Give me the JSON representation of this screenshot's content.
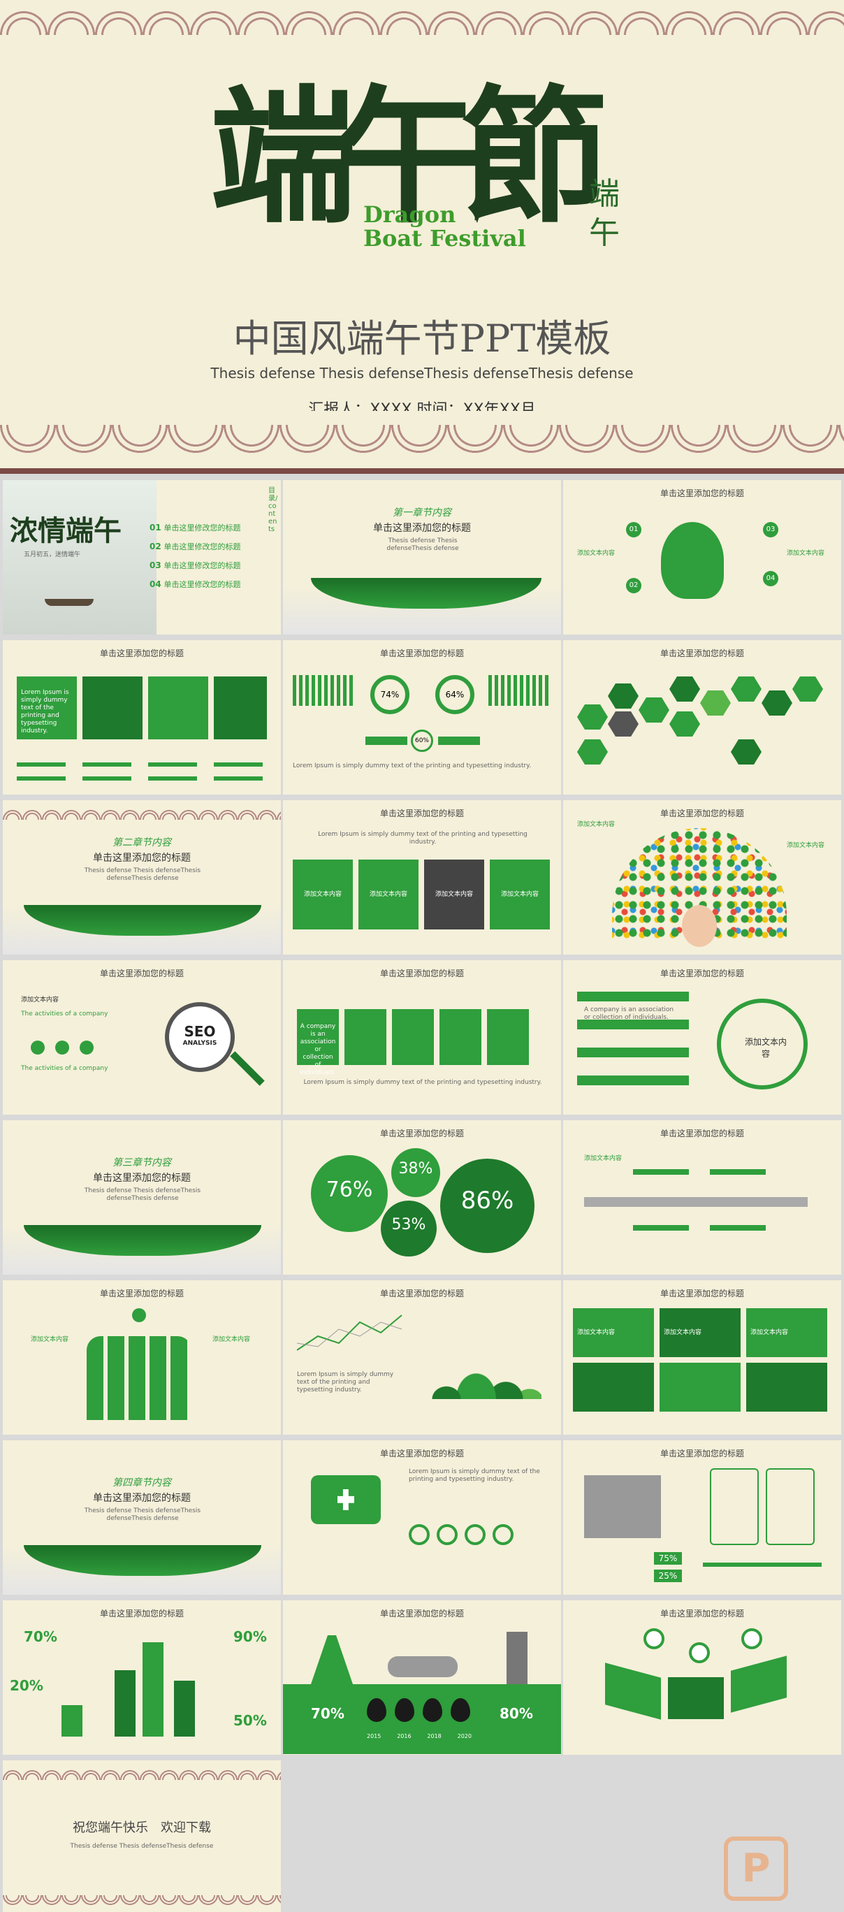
{
  "hero": {
    "brush_title": "端午節",
    "eng_line1": "Dragon",
    "eng_line2": "Boat Festival",
    "seal": "端午",
    "title": "中国风端午节PPT模板",
    "subtitle": "Thesis defense Thesis defenseThesis defenseThesis defense",
    "meta": "汇报人：XXXX   时间：XX年XX月"
  },
  "colors": {
    "green": "#2f9e3c",
    "dark_green": "#1e7a2c",
    "light_green": "#58b548",
    "beige": "#f5f0da",
    "wave": "#b58b86"
  },
  "slide_title": "单击这里添加您的标题",
  "toc": {
    "brush": "浓情端午",
    "tagline": "五月初五，迷情端午",
    "side": "目录/contents",
    "items": [
      {
        "num": "01",
        "label": "单击这里修改您的标题"
      },
      {
        "num": "02",
        "label": "单击这里修改您的标题"
      },
      {
        "num": "03",
        "label": "单击这里修改您的标题"
      },
      {
        "num": "04",
        "label": "单击这里修改您的标题"
      }
    ]
  },
  "chapters": [
    {
      "title": "第一章节内容",
      "sub": "单击这里添加您的标题",
      "desc": "Thesis defense Thesis defenseThesis defense"
    },
    {
      "title": "第二章节内容",
      "sub": "单击这里添加您的标题",
      "desc": "Thesis defense Thesis defenseThesis defenseThesis defense"
    },
    {
      "title": "第三章节内容",
      "sub": "单击这里添加您的标题",
      "desc": "Thesis defense Thesis defenseThesis defenseThesis defense"
    },
    {
      "title": "第四章节内容",
      "sub": "单击这里添加您的标题",
      "desc": "Thesis defense Thesis defenseThesis defenseThesis defense"
    }
  ],
  "labels": {
    "add_text": "添加文本内容",
    "add_text2": "添加文本内容",
    "seo": "SEO",
    "analysis": "ANALYSIS",
    "company": "The activities of a company",
    "assoc": "A company is an association or collection of individuals.",
    "center_add": "添加文本内容",
    "lorem": "Lorem Ipsum is simply dummy text of the printing and typesetting industry."
  },
  "nums": {
    "n01": "01",
    "n02": "02",
    "n03": "03",
    "n04": "04"
  },
  "percents": {
    "p74": "74%",
    "p64": "64%",
    "p60": "60%",
    "p76": "76%",
    "p38": "38%",
    "p53": "53%",
    "p86": "86%",
    "p75": "75%",
    "p25": "25%",
    "p70": "70%",
    "p20": "20%",
    "p90": "90%",
    "p50": "50%",
    "p80": "80%"
  },
  "years": [
    "2015",
    "2016",
    "2018",
    "2020"
  ],
  "ending": {
    "title": "祝您端午快乐　欢迎下载",
    "sub": "Thesis defense Thesis defenseThesis defense"
  },
  "watermark": "P"
}
